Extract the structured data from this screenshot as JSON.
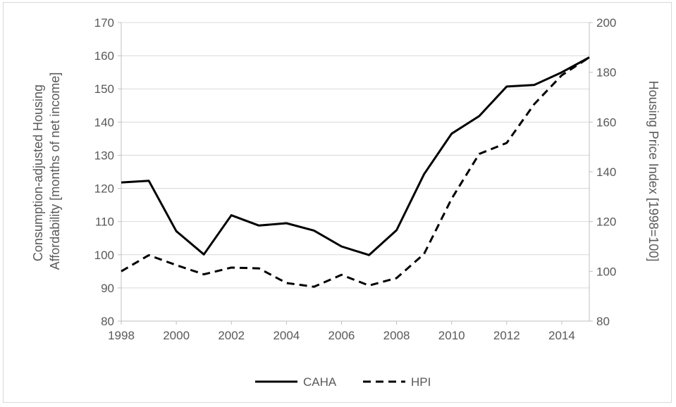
{
  "chart_data": {
    "type": "line",
    "x": [
      1998,
      1999,
      2000,
      2001,
      2002,
      2003,
      2004,
      2005,
      2006,
      2007,
      2008,
      2009,
      2010,
      2011,
      2012,
      2013,
      2014,
      2015
    ],
    "xlim": [
      1998,
      2015
    ],
    "xticks": [
      "1998",
      "2000",
      "2002",
      "2004",
      "2006",
      "2008",
      "2010",
      "2012",
      "2014"
    ],
    "ylabel_left": "Consumption-adjusted Housing Affordability [months of net income]",
    "ylabel_right": "Housing Price Index [1998=100]",
    "ylim_left": [
      80,
      170
    ],
    "ylim_right": [
      80,
      200
    ],
    "yticks_left": [
      "80",
      "90",
      "100",
      "110",
      "120",
      "130",
      "140",
      "150",
      "160",
      "170"
    ],
    "yticks_right": [
      "80",
      "100",
      "120",
      "140",
      "160",
      "180",
      "200"
    ],
    "grid": "horizontal",
    "legend_position": "bottom",
    "series": [
      {
        "name": "CAHA",
        "axis": "left",
        "style": "solid",
        "color": "#000000",
        "values": [
          121.8,
          122.3,
          107.1,
          100.1,
          111.9,
          108.8,
          109.5,
          107.3,
          102.5,
          99.9,
          107.4,
          124.3,
          136.5,
          141.8,
          150.7,
          151.2,
          155.0,
          159.5
        ]
      },
      {
        "name": "HPI",
        "axis": "right",
        "style": "dashed",
        "color": "#000000",
        "values": [
          100.0,
          106.5,
          102.5,
          98.8,
          101.5,
          101.2,
          95.3,
          93.8,
          98.6,
          94.3,
          97.3,
          107.0,
          129.2,
          147.2,
          151.6,
          167.2,
          178.8,
          186.0
        ]
      }
    ]
  }
}
